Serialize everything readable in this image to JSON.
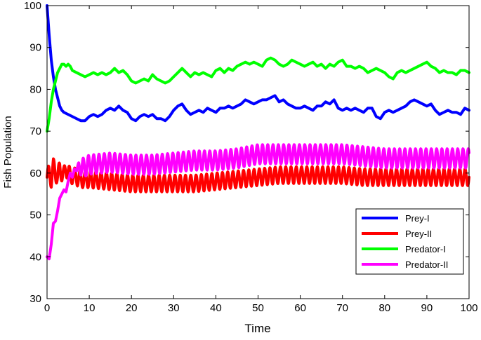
{
  "chart_data": {
    "type": "line",
    "title": "",
    "xlabel": "Time",
    "ylabel": "Fish Population",
    "xlim": [
      0,
      100
    ],
    "ylim": [
      30,
      100
    ],
    "xticks": [
      0,
      10,
      20,
      30,
      40,
      50,
      60,
      70,
      80,
      90,
      100
    ],
    "yticks": [
      30,
      40,
      50,
      60,
      70,
      80,
      90,
      100
    ],
    "grid": false,
    "legend_position": "bottom-right",
    "series": [
      {
        "name": "Prey-I",
        "color": "#0000ff",
        "x": [
          0,
          0.5,
          1,
          1.5,
          2,
          2.5,
          3,
          3.5,
          4,
          5,
          6,
          7,
          8,
          9,
          10,
          11,
          12,
          13,
          14,
          15,
          16,
          17,
          18,
          19,
          20,
          21,
          22,
          23,
          24,
          25,
          26,
          27,
          28,
          29,
          30,
          31,
          32,
          33,
          34,
          35,
          36,
          37,
          38,
          39,
          40,
          41,
          42,
          43,
          44,
          45,
          46,
          47,
          48,
          49,
          50,
          51,
          52,
          53,
          54,
          55,
          56,
          57,
          58,
          59,
          60,
          61,
          62,
          63,
          64,
          65,
          66,
          67,
          68,
          69,
          70,
          71,
          72,
          73,
          74,
          75,
          76,
          77,
          78,
          79,
          80,
          81,
          82,
          83,
          84,
          85,
          86,
          87,
          88,
          89,
          90,
          91,
          92,
          93,
          94,
          95,
          96,
          97,
          98,
          99,
          100
        ],
        "values": [
          100,
          93,
          87,
          83,
          80,
          78,
          76,
          75,
          74.5,
          74,
          73.5,
          73,
          72.5,
          72.5,
          73.5,
          74,
          73.5,
          74,
          75,
          75.5,
          75,
          76,
          75,
          74.5,
          73,
          72.5,
          73.5,
          74,
          73.5,
          74,
          73,
          73,
          72.5,
          73.5,
          75,
          76,
          76.5,
          75,
          74,
          74.5,
          75,
          74.5,
          75.5,
          75,
          74.5,
          75.5,
          75.5,
          76,
          75.5,
          76,
          76.5,
          77.5,
          77,
          76.5,
          77,
          77.5,
          77.5,
          78,
          78.5,
          77,
          77.5,
          76.5,
          76,
          75.5,
          75.5,
          76,
          75.5,
          75,
          76,
          76,
          77,
          76.5,
          77.5,
          75.5,
          75,
          75.5,
          75,
          75.5,
          75,
          74.5,
          75.5,
          75.5,
          73.5,
          73,
          74.5,
          75,
          74.5,
          75,
          75.5,
          76,
          77,
          77.5,
          77,
          76.5,
          76,
          76.5,
          75,
          74,
          74.5,
          75,
          74.5,
          74.5,
          74,
          75.5,
          75
        ]
      },
      {
        "name": "Prey-II",
        "color": "#ff0000",
        "x": [
          0,
          0.5,
          1,
          1.5,
          2,
          2.5,
          3,
          3.5,
          4,
          4.5,
          5,
          5.5,
          6,
          7,
          8,
          10,
          15,
          20,
          25,
          30,
          35,
          40,
          45,
          50,
          55,
          60,
          65,
          70,
          75,
          80,
          85,
          90,
          95,
          100
        ],
        "values": [
          59,
          60,
          58.5,
          61.5,
          60,
          59,
          61,
          60,
          59.5,
          61,
          60.5,
          59,
          59.5,
          59,
          58.5,
          58.5,
          58,
          57.5,
          57.5,
          57.5,
          57.5,
          58,
          58.5,
          59,
          59.5,
          59.5,
          59.5,
          59.5,
          59,
          59,
          59,
          59,
          59,
          59
        ],
        "oscillation": {
          "amplitude": 2,
          "period": 1.25
        }
      },
      {
        "name": "Predator-I",
        "color": "#00ff00",
        "x": [
          0,
          0.5,
          1,
          1.5,
          2,
          2.5,
          3,
          3.5,
          4,
          4.5,
          5,
          5.5,
          6,
          7,
          8,
          9,
          10,
          11,
          12,
          13,
          14,
          15,
          16,
          17,
          18,
          19,
          20,
          21,
          22,
          23,
          24,
          25,
          26,
          27,
          28,
          29,
          30,
          31,
          32,
          33,
          34,
          35,
          36,
          37,
          38,
          39,
          40,
          41,
          42,
          43,
          44,
          45,
          46,
          47,
          48,
          49,
          50,
          51,
          52,
          53,
          54,
          55,
          56,
          57,
          58,
          59,
          60,
          61,
          62,
          63,
          64,
          65,
          66,
          67,
          68,
          69,
          70,
          71,
          72,
          73,
          74,
          75,
          76,
          77,
          78,
          79,
          80,
          81,
          82,
          83,
          84,
          85,
          86,
          87,
          88,
          89,
          90,
          91,
          92,
          93,
          94,
          95,
          96,
          97,
          98,
          99,
          100
        ],
        "values": [
          70,
          73,
          77,
          80,
          82,
          84,
          85,
          86,
          86,
          85.5,
          86,
          85.5,
          84.5,
          84,
          83.5,
          83,
          83.5,
          84,
          83.5,
          84,
          83.5,
          84,
          85,
          84,
          84.5,
          83.5,
          82,
          81.5,
          82,
          82.5,
          82,
          83.5,
          82.5,
          82,
          81.5,
          82,
          83,
          84,
          85,
          84,
          83,
          84,
          83.5,
          84,
          83.5,
          83,
          84.5,
          85,
          84,
          85,
          84.5,
          85.5,
          86,
          86.5,
          86,
          86.5,
          86,
          85.5,
          87,
          87.5,
          87,
          86,
          85.5,
          86,
          87,
          86.5,
          86,
          85.5,
          86,
          86.5,
          85.5,
          86,
          85,
          86,
          85.5,
          86.5,
          87,
          85.5,
          85.5,
          85,
          85.5,
          85,
          84,
          84.5,
          85,
          84.5,
          84,
          83,
          82.5,
          84,
          84.5,
          84,
          84.5,
          85,
          85.5,
          86,
          86.5,
          85.5,
          85,
          84,
          84.5,
          84,
          84,
          83.5,
          84.5,
          84.5,
          84
        ]
      },
      {
        "name": "Predator-II",
        "color": "#ff00ff",
        "x": [
          0,
          0.5,
          1,
          1.5,
          2,
          2.5,
          3,
          3.5,
          4,
          4.5,
          5,
          5.5,
          6,
          6.5,
          7,
          7.5,
          8,
          9,
          10,
          15,
          20,
          25,
          30,
          35,
          40,
          45,
          50,
          55,
          60,
          65,
          70,
          75,
          80,
          85,
          90,
          95,
          100
        ],
        "values": [
          40,
          39.5,
          43,
          48,
          48.5,
          51,
          54,
          55,
          56,
          55.5,
          58,
          60,
          59,
          61,
          60.5,
          62,
          61,
          61.5,
          62,
          62.5,
          62,
          62,
          62.5,
          63,
          63,
          63.5,
          64.5,
          64.5,
          64.5,
          64.5,
          64.5,
          64,
          63.5,
          63.5,
          63.5,
          63.5,
          63.5
        ],
        "oscillation": {
          "amplitude": 2.3,
          "period": 1.25,
          "start": 7
        }
      }
    ]
  }
}
